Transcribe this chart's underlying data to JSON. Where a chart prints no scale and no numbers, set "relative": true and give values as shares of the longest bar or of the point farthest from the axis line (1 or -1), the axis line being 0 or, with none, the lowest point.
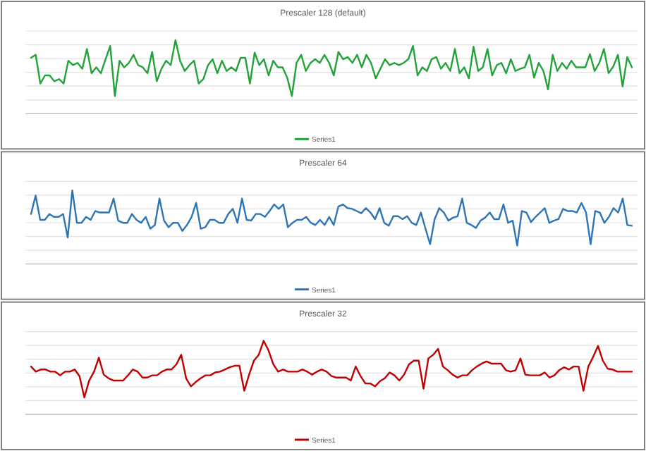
{
  "chart_data": [
    {
      "type": "line",
      "title": "Prescaler 128 (default)",
      "relative": true,
      "grid": "y",
      "legend": "bottom",
      "categories": [
        null,
        null,
        null,
        null,
        null,
        null,
        null,
        null,
        null,
        null,
        null,
        null,
        null,
        null,
        null,
        null,
        null,
        null,
        null,
        null,
        null,
        null,
        null,
        null,
        null,
        null,
        null,
        null,
        null,
        null,
        null,
        null,
        null,
        null,
        null,
        null,
        null,
        null,
        null,
        null,
        null,
        null,
        null,
        null,
        null,
        null,
        null,
        null,
        null,
        null,
        null,
        null,
        null,
        null,
        null,
        null,
        null,
        null,
        null,
        null,
        null,
        null,
        null,
        null,
        null,
        null,
        null,
        null,
        null,
        null,
        null,
        null,
        null,
        null,
        null,
        null,
        null,
        null,
        null,
        null,
        null,
        null,
        null,
        null,
        null,
        null,
        null,
        null,
        null,
        null,
        null,
        null,
        null,
        null,
        null,
        null,
        null,
        null,
        null,
        null,
        null,
        null,
        null,
        null,
        null,
        null,
        null,
        null,
        null,
        null,
        null,
        null,
        null,
        null,
        null,
        null,
        null,
        null,
        null,
        null,
        null,
        null,
        null,
        null,
        null,
        null,
        null,
        null,
        null,
        null
      ],
      "series": [
        {
          "name": "Series1",
          "color": "#22a33a",
          "values": [
            0.76,
            0.8,
            0.41,
            0.52,
            0.52,
            0.44,
            0.47,
            0.41,
            0.72,
            0.66,
            0.69,
            0.61,
            0.88,
            0.55,
            0.63,
            0.55,
            0.74,
            0.92,
            0.24,
            0.72,
            0.63,
            0.69,
            0.8,
            0.66,
            0.63,
            0.55,
            0.84,
            0.44,
            0.61,
            0.72,
            0.66,
            1,
            0.72,
            0.58,
            0.66,
            0.72,
            0.41,
            0.47,
            0.66,
            0.74,
            0.55,
            0.72,
            0.58,
            0.63,
            0.58,
            0.76,
            0.76,
            0.41,
            0.83,
            0.66,
            0.74,
            0.52,
            0.72,
            0.63,
            0.63,
            0.49,
            0.24,
            0.69,
            0.8,
            0.58,
            0.69,
            0.74,
            0.69,
            0.8,
            0.69,
            0.52,
            0.84,
            0.74,
            0.77,
            0.69,
            0.8,
            0.63,
            0.8,
            0.69,
            0.48,
            0.61,
            0.74,
            0.66,
            0.69,
            0.66,
            0.69,
            0.74,
            0.92,
            0.52,
            0.63,
            0.58,
            0.74,
            0.77,
            0.61,
            0.69,
            0.58,
            0.88,
            0.55,
            0.63,
            0.48,
            0.91,
            0.58,
            0.63,
            0.88,
            0.52,
            0.66,
            0.69,
            0.55,
            0.74,
            0.58,
            0.61,
            0.63,
            0.8,
            0.49,
            0.69,
            0.58,
            0.33,
            0.8,
            0.58,
            0.69,
            0.61,
            0.72,
            0.63,
            0.63,
            0.63,
            0.81,
            0.58,
            0.69,
            0.88,
            0.55,
            0.64,
            0.8,
            0.37,
            0.77,
            0.63
          ]
        }
      ]
    },
    {
      "type": "line",
      "title": "Prescaler 64",
      "relative": true,
      "grid": "y",
      "legend": "bottom",
      "categories": [
        null,
        null,
        null,
        null,
        null,
        null,
        null,
        null,
        null,
        null,
        null,
        null,
        null,
        null,
        null,
        null,
        null,
        null,
        null,
        null,
        null,
        null,
        null,
        null,
        null,
        null,
        null,
        null,
        null,
        null,
        null,
        null,
        null,
        null,
        null,
        null,
        null,
        null,
        null,
        null,
        null,
        null,
        null,
        null,
        null,
        null,
        null,
        null,
        null,
        null,
        null,
        null,
        null,
        null,
        null,
        null,
        null,
        null,
        null,
        null,
        null,
        null,
        null,
        null,
        null,
        null,
        null,
        null,
        null,
        null,
        null,
        null,
        null,
        null,
        null,
        null,
        null,
        null,
        null,
        null,
        null,
        null,
        null,
        null,
        null,
        null,
        null,
        null,
        null,
        null,
        null,
        null,
        null,
        null,
        null,
        null,
        null,
        null,
        null,
        null,
        null,
        null,
        null,
        null,
        null,
        null,
        null,
        null,
        null,
        null,
        null,
        null,
        null,
        null,
        null,
        null,
        null,
        null,
        null,
        null,
        null,
        null,
        null,
        null,
        null,
        null,
        null,
        null,
        null,
        null,
        null,
        null
      ],
      "series": [
        {
          "name": "Series1",
          "color": "#2e75b6",
          "values": [
            0.68,
            0.93,
            0.6,
            0.6,
            0.68,
            0.64,
            0.64,
            0.68,
            0.36,
            1,
            0.56,
            0.56,
            0.64,
            0.6,
            0.72,
            0.7,
            0.7,
            0.7,
            0.89,
            0.59,
            0.56,
            0.56,
            0.68,
            0.6,
            0.56,
            0.64,
            0.48,
            0.53,
            0.89,
            0.59,
            0.5,
            0.56,
            0.56,
            0.45,
            0.53,
            0.64,
            0.83,
            0.48,
            0.5,
            0.6,
            0.6,
            0.56,
            0.56,
            0.68,
            0.75,
            0.56,
            0.89,
            0.6,
            0.59,
            0.68,
            0.68,
            0.64,
            0.72,
            0.81,
            0.75,
            0.81,
            0.5,
            0.56,
            0.6,
            0.6,
            0.64,
            0.56,
            0.53,
            0.6,
            0.53,
            0.64,
            0.53,
            0.78,
            0.81,
            0.76,
            0.75,
            0.72,
            0.69,
            0.76,
            0.7,
            0.61,
            0.76,
            0.56,
            0.52,
            0.65,
            0.65,
            0.61,
            0.65,
            0.56,
            0.53,
            0.7,
            0.48,
            0.27,
            0.61,
            0.76,
            0.7,
            0.59,
            0.63,
            0.65,
            0.89,
            0.56,
            0.53,
            0.49,
            0.59,
            0.63,
            0.7,
            0.61,
            0.61,
            0.81,
            0.56,
            0.59,
            0.25,
            0.72,
            0.7,
            0.57,
            0.64,
            0.7,
            0.76,
            0.56,
            0.59,
            0.61,
            0.75,
            0.72,
            0.72,
            0.7,
            0.83,
            0.7,
            0.27,
            0.72,
            0.7,
            0.56,
            0.64,
            0.76,
            0.7,
            0.89,
            0.53,
            0.52
          ]
        }
      ]
    },
    {
      "type": "line",
      "title": "Prescaler 32",
      "relative": true,
      "grid": "y",
      "legend": "bottom",
      "categories": [
        null,
        null,
        null,
        null,
        null,
        null,
        null,
        null,
        null,
        null,
        null,
        null,
        null,
        null,
        null,
        null,
        null,
        null,
        null,
        null,
        null,
        null,
        null,
        null,
        null,
        null,
        null,
        null,
        null,
        null,
        null,
        null,
        null,
        null,
        null,
        null,
        null,
        null,
        null,
        null,
        null,
        null,
        null,
        null,
        null,
        null,
        null,
        null,
        null,
        null,
        null,
        null,
        null,
        null,
        null,
        null,
        null,
        null,
        null,
        null,
        null,
        null,
        null,
        null,
        null,
        null,
        null,
        null,
        null,
        null,
        null,
        null,
        null,
        null,
        null,
        null,
        null,
        null,
        null,
        null,
        null,
        null,
        null,
        null,
        null,
        null,
        null,
        null,
        null,
        null,
        null,
        null,
        null,
        null,
        null,
        null,
        null,
        null,
        null,
        null,
        null,
        null,
        null,
        null,
        null,
        null,
        null,
        null,
        null,
        null,
        null,
        null,
        null,
        null,
        null,
        null,
        null,
        null,
        null,
        null,
        null,
        null,
        null,
        null,
        null
      ],
      "series": [
        {
          "name": "Series1",
          "color": "#c00000",
          "values": [
            0.65,
            0.58,
            0.61,
            0.61,
            0.58,
            0.58,
            0.53,
            0.58,
            0.58,
            0.61,
            0.52,
            0.23,
            0.46,
            0.58,
            0.77,
            0.54,
            0.49,
            0.46,
            0.46,
            0.46,
            0.53,
            0.61,
            0.58,
            0.5,
            0.5,
            0.53,
            0.53,
            0.58,
            0.61,
            0.61,
            0.68,
            0.81,
            0.49,
            0.38,
            0.44,
            0.49,
            0.53,
            0.53,
            0.57,
            0.58,
            0.61,
            0.64,
            0.66,
            0.66,
            0.32,
            0.54,
            0.73,
            0.81,
            1,
            0.87,
            0.68,
            0.58,
            0.61,
            0.58,
            0.58,
            0.58,
            0.61,
            0.58,
            0.54,
            0.58,
            0.61,
            0.58,
            0.52,
            0.5,
            0.5,
            0.5,
            0.46,
            0.65,
            0.52,
            0.42,
            0.42,
            0.38,
            0.45,
            0.49,
            0.57,
            0.53,
            0.46,
            0.54,
            0.68,
            0.73,
            0.73,
            0.35,
            0.76,
            0.81,
            0.89,
            0.65,
            0.6,
            0.54,
            0.5,
            0.53,
            0.53,
            0.6,
            0.65,
            0.69,
            0.72,
            0.69,
            0.69,
            0.69,
            0.6,
            0.58,
            0.6,
            0.76,
            0.54,
            0.53,
            0.53,
            0.53,
            0.57,
            0.5,
            0.53,
            0.6,
            0.64,
            0.61,
            0.65,
            0.65,
            0.32,
            0.65,
            0.78,
            0.93,
            0.73,
            0.62,
            0.61,
            0.58,
            0.58,
            0.58,
            0.58
          ]
        }
      ]
    }
  ]
}
